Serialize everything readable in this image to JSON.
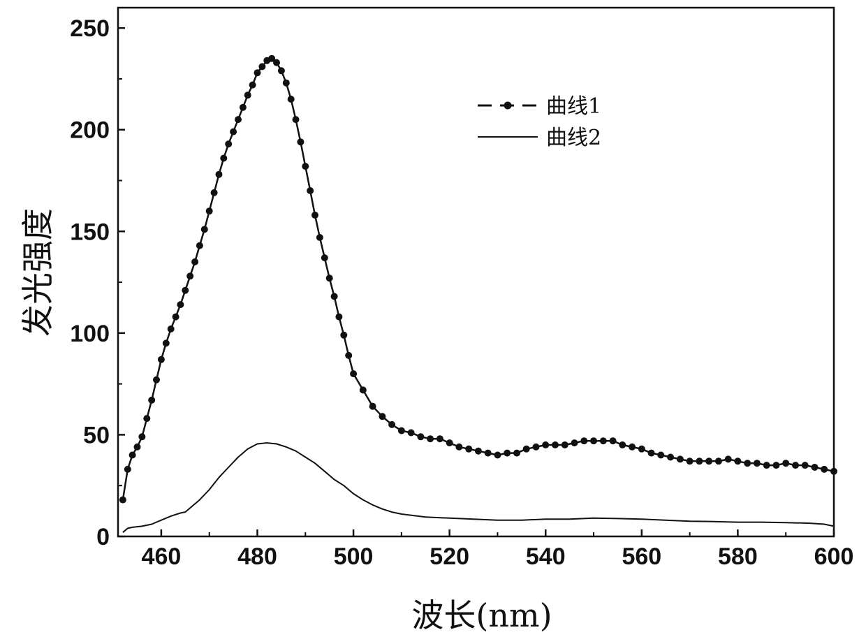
{
  "chart_data": {
    "type": "line",
    "title": "",
    "xlabel": "波长(nm)",
    "ylabel": "发光强度",
    "xlim": [
      451,
      600
    ],
    "ylim": [
      0,
      260
    ],
    "xticks": [
      460,
      480,
      500,
      520,
      540,
      560,
      580,
      600
    ],
    "yticks": [
      0,
      50,
      100,
      150,
      200,
      250
    ],
    "grid": false,
    "legend_position": "top-center",
    "series": [
      {
        "name": "曲线1",
        "style": "line-with-markers",
        "color": "#111111",
        "x": [
          452,
          453,
          454,
          455,
          456,
          457,
          458,
          459,
          460,
          461,
          462,
          463,
          464,
          465,
          466,
          467,
          468,
          469,
          470,
          471,
          472,
          473,
          474,
          475,
          476,
          477,
          478,
          479,
          480,
          481,
          482,
          483,
          484,
          485,
          486,
          487,
          488,
          489,
          490,
          491,
          492,
          493,
          494,
          495,
          496,
          497,
          498,
          499,
          500,
          502,
          504,
          506,
          508,
          510,
          512,
          514,
          516,
          518,
          520,
          522,
          524,
          526,
          528,
          530,
          532,
          534,
          536,
          538,
          540,
          542,
          544,
          546,
          548,
          550,
          552,
          554,
          556,
          558,
          560,
          562,
          564,
          566,
          568,
          570,
          572,
          574,
          576,
          578,
          580,
          582,
          584,
          586,
          588,
          590,
          592,
          594,
          596,
          598,
          600
        ],
        "y": [
          18,
          33,
          40,
          44,
          49,
          58,
          67,
          77,
          87,
          95,
          102,
          108,
          114,
          121,
          128,
          135,
          143,
          151,
          160,
          169,
          178,
          186,
          193,
          199,
          205,
          211,
          217,
          222,
          228,
          231,
          234,
          235,
          233,
          229,
          223,
          215,
          205,
          194,
          182,
          170,
          158,
          147,
          137,
          127,
          118,
          108,
          99,
          89,
          80,
          72,
          64,
          59,
          55,
          52,
          51,
          49,
          48,
          48,
          46,
          44,
          43,
          42,
          41,
          40,
          41,
          41,
          43,
          44,
          45,
          45,
          45,
          46,
          47,
          47,
          47,
          47,
          45,
          44,
          43,
          41,
          40,
          39,
          38,
          37,
          37,
          37,
          37,
          38,
          37,
          36,
          36,
          35,
          35,
          36,
          35,
          35,
          34,
          33,
          32
        ]
      },
      {
        "name": "曲线2",
        "style": "line",
        "color": "#111111",
        "x": [
          452,
          453,
          454,
          456,
          458,
          460,
          462,
          464,
          465,
          466,
          468,
          470,
          472,
          474,
          476,
          478,
          480,
          482,
          484,
          486,
          488,
          490,
          492,
          494,
          496,
          498,
          500,
          502,
          504,
          506,
          508,
          510,
          515,
          520,
          525,
          530,
          535,
          540,
          545,
          550,
          555,
          560,
          565,
          570,
          575,
          580,
          585,
          590,
          595,
          598,
          600
        ],
        "y": [
          2,
          4,
          4.5,
          5,
          6,
          8,
          10,
          11.5,
          12,
          14,
          18,
          23,
          29,
          34,
          39,
          43,
          45.5,
          46,
          45.5,
          44,
          42,
          39,
          36,
          32,
          28,
          25,
          21,
          18,
          15.5,
          13.5,
          12,
          11,
          9.5,
          9,
          8.5,
          8,
          8,
          8.5,
          8.5,
          9,
          8.8,
          8.5,
          8,
          7.5,
          7.3,
          7,
          7,
          6.8,
          6.5,
          6,
          5
        ]
      }
    ]
  }
}
